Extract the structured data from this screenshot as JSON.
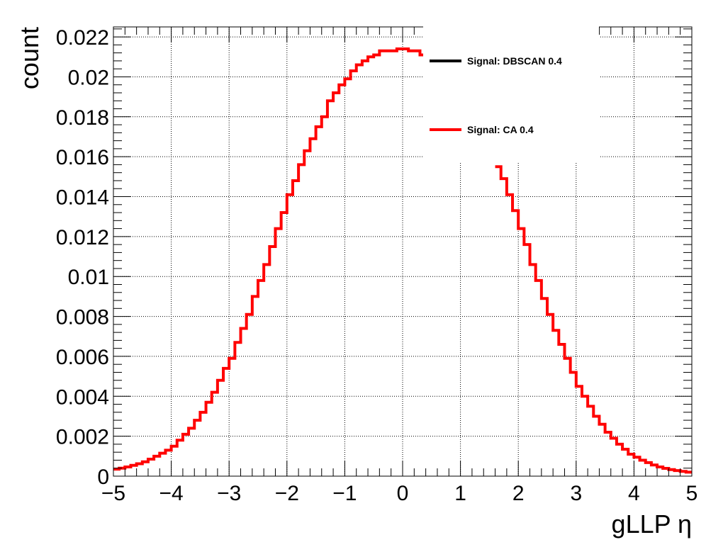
{
  "chart_data": {
    "type": "line",
    "style": "histogram-step",
    "xlabel": "gLLP η",
    "ylabel": "count",
    "xlim": [
      -5,
      5
    ],
    "ylim": [
      0,
      0.0225
    ],
    "grid": true,
    "x_ticks": [
      "−5",
      "−4",
      "−3",
      "−2",
      "−1",
      "0",
      "1",
      "2",
      "3",
      "4",
      "5"
    ],
    "y_ticks": [
      "0",
      "0.002",
      "0.004",
      "0.006",
      "0.008",
      "0.01",
      "0.012",
      "0.014",
      "0.016",
      "0.018",
      "0.02",
      "0.022"
    ],
    "bin_edges_range": [
      -5,
      5
    ],
    "bin_count": 100,
    "legend": {
      "placement": "top-right",
      "entries": [
        {
          "label": "Signal: DBSCAN 0.4",
          "color": "#000000"
        },
        {
          "label": "Signal: CA 0.4",
          "color": "#ff0000"
        }
      ]
    },
    "series": [
      {
        "name": "Signal: CA 0.4",
        "color": "#ff0000",
        "x": [
          -4.95,
          -4.85,
          -4.75,
          -4.65,
          -4.55,
          -4.45,
          -4.35,
          -4.25,
          -4.15,
          -4.05,
          -3.95,
          -3.85,
          -3.75,
          -3.65,
          -3.55,
          -3.45,
          -3.35,
          -3.25,
          -3.15,
          -3.05,
          -2.95,
          -2.85,
          -2.75,
          -2.65,
          -2.55,
          -2.45,
          -2.35,
          -2.25,
          -2.15,
          -2.05,
          -1.95,
          -1.85,
          -1.75,
          -1.65,
          -1.55,
          -1.45,
          -1.35,
          -1.25,
          -1.15,
          -1.05,
          -0.95,
          -0.85,
          -0.75,
          -0.65,
          -0.55,
          -0.45,
          -0.35,
          -0.25,
          -0.15,
          -0.05,
          0.05,
          0.15,
          0.25,
          0.35,
          1.65,
          1.75,
          1.85,
          1.95,
          2.05,
          2.15,
          2.25,
          2.35,
          2.45,
          2.55,
          2.65,
          2.75,
          2.85,
          2.95,
          3.05,
          3.15,
          3.25,
          3.35,
          3.45,
          3.55,
          3.65,
          3.75,
          3.85,
          3.95,
          4.05,
          4.15,
          4.25,
          4.35,
          4.45,
          4.55,
          4.65,
          4.75,
          4.85,
          4.95
        ],
        "values": [
          0.00035,
          0.0004,
          0.00046,
          0.00054,
          0.00062,
          0.00072,
          0.00085,
          0.001,
          0.00115,
          0.0013,
          0.0015,
          0.0018,
          0.0021,
          0.0024,
          0.0028,
          0.0032,
          0.0037,
          0.0042,
          0.0048,
          0.0054,
          0.0059,
          0.0067,
          0.0074,
          0.0081,
          0.009,
          0.0098,
          0.0106,
          0.0115,
          0.0124,
          0.0132,
          0.0141,
          0.0148,
          0.0156,
          0.0163,
          0.0169,
          0.0175,
          0.018,
          0.0188,
          0.0192,
          0.0196,
          0.0199,
          0.0203,
          0.0206,
          0.0208,
          0.021,
          0.0211,
          0.0213,
          0.0213,
          0.0213,
          0.0214,
          0.0214,
          0.0213,
          0.0213,
          0.0211,
          0.0155,
          0.0149,
          0.0141,
          0.0133,
          0.0124,
          0.0116,
          0.0106,
          0.0098,
          0.0089,
          0.0081,
          0.0073,
          0.0066,
          0.0059,
          0.0052,
          0.0045,
          0.004,
          0.0035,
          0.003,
          0.0026,
          0.0022,
          0.0019,
          0.0016,
          0.00135,
          0.0011,
          0.00095,
          0.0008,
          0.00068,
          0.00056,
          0.00046,
          0.00039,
          0.00033,
          0.00028,
          0.00024,
          0.0002
        ]
      }
    ]
  }
}
